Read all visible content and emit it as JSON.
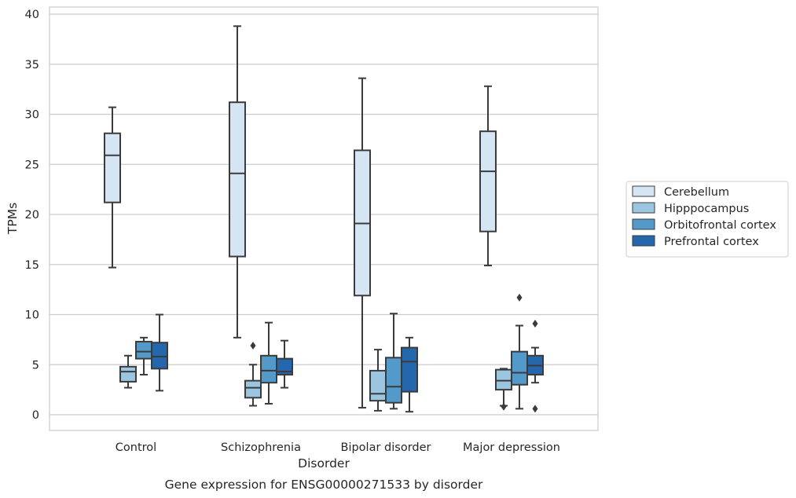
{
  "chart_data": {
    "type": "box",
    "title": "Gene expression for ENSG00000271533 by disorder",
    "xlabel": "Disorder",
    "ylabel": "TPMs",
    "ylim": [
      -1.5,
      40.8
    ],
    "yticks": [
      0,
      5,
      10,
      15,
      20,
      25,
      30,
      35,
      40
    ],
    "grid": "horizontal",
    "legend_position": "right",
    "categories": [
      "Control",
      "Schizophrenia",
      "Bipolar disorder",
      "Major depression"
    ],
    "series": [
      {
        "name": "Cerebellum",
        "color": "#d6e5f4",
        "boxes": [
          {
            "whislo": 14.7,
            "q1": 21.2,
            "med": 25.9,
            "q3": 28.1,
            "whishi": 30.7,
            "fliers": []
          },
          {
            "whislo": 7.7,
            "q1": 15.8,
            "med": 24.1,
            "q3": 31.2,
            "whishi": 38.8,
            "fliers": []
          },
          {
            "whislo": 0.7,
            "q1": 11.9,
            "med": 19.1,
            "q3": 26.4,
            "whishi": 33.6,
            "fliers": []
          },
          {
            "whislo": 14.9,
            "q1": 18.3,
            "med": 24.3,
            "q3": 28.3,
            "whishi": 32.8,
            "fliers": []
          }
        ]
      },
      {
        "name": "Hipppocampus",
        "color": "#9cc6e0",
        "boxes": [
          {
            "whislo": 2.7,
            "q1": 3.3,
            "med": 4.3,
            "q3": 4.8,
            "whishi": 5.9,
            "fliers": []
          },
          {
            "whislo": 0.9,
            "q1": 1.7,
            "med": 2.7,
            "q3": 3.4,
            "whishi": 5.0,
            "fliers": [
              6.9
            ]
          },
          {
            "whislo": 0.4,
            "q1": 1.4,
            "med": 2.1,
            "q3": 4.4,
            "whishi": 6.5,
            "fliers": []
          },
          {
            "whislo": 0.9,
            "q1": 2.5,
            "med": 3.4,
            "q3": 4.5,
            "whishi": 4.6,
            "fliers": [
              0.8
            ]
          }
        ]
      },
      {
        "name": "Orbitofrontal cortex",
        "color": "#5399c9",
        "boxes": [
          {
            "whislo": 4.0,
            "q1": 5.6,
            "med": 6.3,
            "q3": 7.3,
            "whishi": 7.7,
            "fliers": []
          },
          {
            "whislo": 1.1,
            "q1": 3.2,
            "med": 4.4,
            "q3": 5.9,
            "whishi": 9.2,
            "fliers": []
          },
          {
            "whislo": 0.6,
            "q1": 1.2,
            "med": 2.8,
            "q3": 5.7,
            "whishi": 10.1,
            "fliers": []
          },
          {
            "whislo": 0.6,
            "q1": 3.0,
            "med": 4.2,
            "q3": 6.3,
            "whishi": 8.9,
            "fliers": [
              11.7
            ]
          }
        ]
      },
      {
        "name": "Prefrontal cortex",
        "color": "#2567ac",
        "boxes": [
          {
            "whislo": 2.4,
            "q1": 4.6,
            "med": 5.8,
            "q3": 7.2,
            "whishi": 10.0,
            "fliers": []
          },
          {
            "whislo": 2.7,
            "q1": 4.0,
            "med": 4.3,
            "q3": 5.6,
            "whishi": 7.4,
            "fliers": []
          },
          {
            "whislo": 0.3,
            "q1": 2.3,
            "med": 5.3,
            "q3": 6.7,
            "whishi": 7.7,
            "fliers": []
          },
          {
            "whislo": 3.2,
            "q1": 4.0,
            "med": 4.9,
            "q3": 5.9,
            "whishi": 6.7,
            "fliers": [
              0.6,
              9.1
            ]
          }
        ]
      }
    ]
  }
}
